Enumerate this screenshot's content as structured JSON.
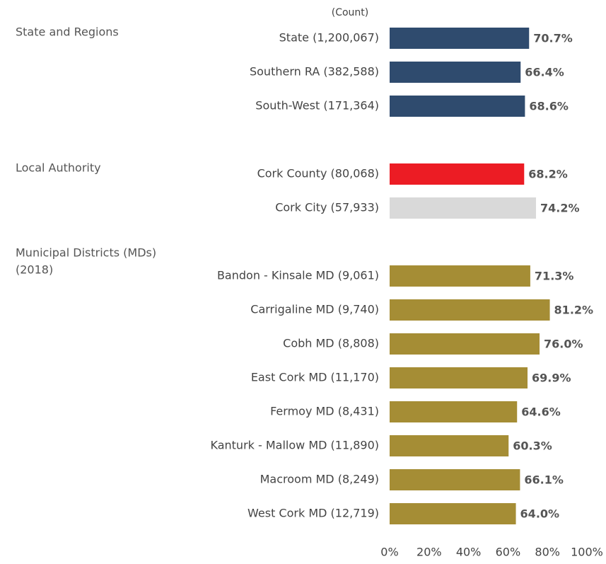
{
  "chart_data": {
    "type": "bar",
    "orientation": "horizontal",
    "count_header": "(Count)",
    "xlim": [
      0,
      100
    ],
    "xticks": [
      {
        "value": 0,
        "label": "0%"
      },
      {
        "value": 20,
        "label": "20%"
      },
      {
        "value": 40,
        "label": "40%"
      },
      {
        "value": 60,
        "label": "60%"
      },
      {
        "value": 80,
        "label": "80%"
      },
      {
        "value": 100,
        "label": "100%"
      }
    ],
    "groups": [
      {
        "label_lines": [
          "State and Regions"
        ],
        "categories": [
          "State (1,200,067)",
          "Southern RA (382,588)",
          "South-West (171,364)"
        ],
        "values": [
          70.7,
          66.4,
          68.6
        ],
        "value_labels": [
          "70.7%",
          "66.4%",
          "68.6%"
        ],
        "colors": [
          "#2f4b6e",
          "#2f4b6e",
          "#2f4b6e"
        ]
      },
      {
        "label_lines": [
          "Local Authority"
        ],
        "categories": [
          "Cork County (80,068)",
          "Cork City (57,933)"
        ],
        "values": [
          68.2,
          74.2
        ],
        "value_labels": [
          "68.2%",
          "74.2%"
        ],
        "colors": [
          "#ec1c24",
          "#d9d9d9"
        ]
      },
      {
        "label_lines": [
          "Municipal Districts (MDs)",
          "(2018)"
        ],
        "categories": [
          "Bandon - Kinsale MD (9,061)",
          "Carrigaline MD (9,740)",
          "Cobh MD (8,808)",
          "East Cork MD (11,170)",
          "Fermoy MD (8,431)",
          "Kanturk - Mallow MD (11,890)",
          "Macroom MD (8,249)",
          "West Cork MD (12,719)"
        ],
        "values": [
          71.3,
          81.2,
          76.0,
          69.9,
          64.6,
          60.3,
          66.1,
          64.0
        ],
        "value_labels": [
          "71.3%",
          "81.2%",
          "76.0%",
          "69.9%",
          "64.6%",
          "60.3%",
          "66.1%",
          "64.0%"
        ],
        "colors": [
          "#a58d35",
          "#a58d35",
          "#a58d35",
          "#a58d35",
          "#a58d35",
          "#a58d35",
          "#a58d35",
          "#a58d35"
        ]
      }
    ]
  }
}
